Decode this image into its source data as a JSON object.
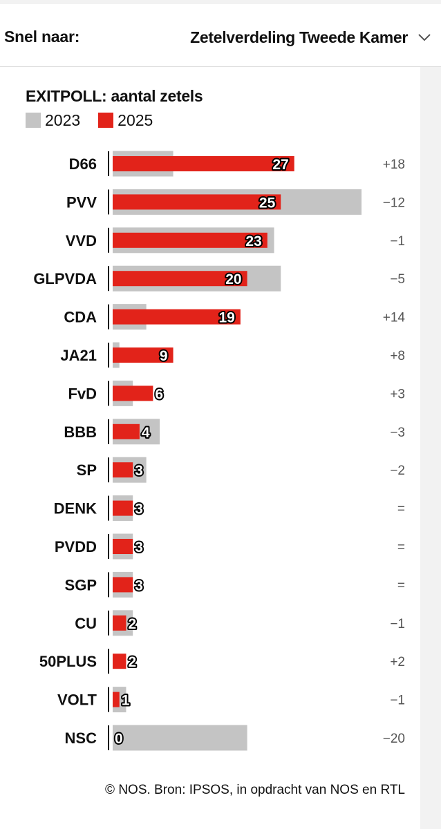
{
  "nav": {
    "label": "Snel naar:",
    "selected": "Zetelverdeling Tweede Kamer"
  },
  "chart_data": {
    "type": "bar",
    "title": "EXITPOLL: aantal zetels",
    "series": [
      {
        "name": "2023",
        "color": "#c4c4c4",
        "values": [
          9,
          37,
          24,
          25,
          5,
          1,
          3,
          7,
          5,
          3,
          3,
          3,
          3,
          0,
          2,
          20
        ]
      },
      {
        "name": "2025",
        "color": "#e2231a",
        "values": [
          27,
          25,
          23,
          20,
          19,
          9,
          6,
          4,
          3,
          3,
          3,
          3,
          2,
          2,
          1,
          0
        ]
      }
    ],
    "categories": [
      "D66",
      "PVV",
      "VVD",
      "GLPVDA",
      "CDA",
      "JA21",
      "FvD",
      "BBB",
      "SP",
      "DENK",
      "PVDD",
      "SGP",
      "CU",
      "50PLUS",
      "VOLT",
      "NSC"
    ],
    "differences": [
      "+18",
      "−12",
      "−1",
      "−5",
      "+14",
      "+8",
      "+3",
      "−3",
      "−2",
      "=",
      "=",
      "=",
      "−1",
      "+2",
      "−1",
      "−20"
    ],
    "value_labels": [
      "27",
      "25",
      "23",
      "20",
      "19",
      "9",
      "6",
      "4",
      "3",
      "3",
      "3",
      "3",
      "2",
      "2",
      "1",
      "0"
    ],
    "source": "© NOS. Bron: IPSOS, in opdracht van NOS en RTL"
  }
}
